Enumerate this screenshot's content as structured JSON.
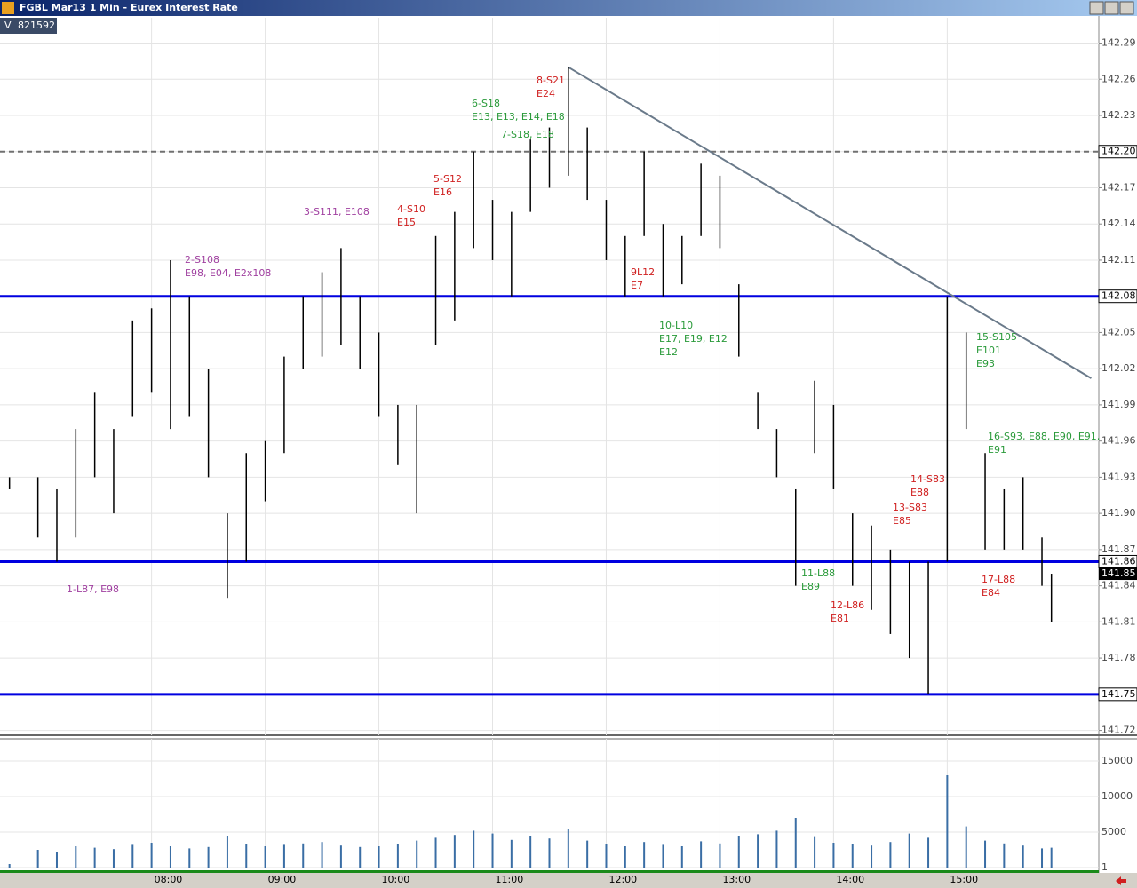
{
  "chart_data": {
    "type": "ohlc",
    "title": "FGBL Mar13 1 Min - Eurex Interest Rate",
    "volume_total_label": "V",
    "volume_total": 821592,
    "x": [
      "06:45",
      "07:00",
      "07:10",
      "07:20",
      "07:30",
      "07:40",
      "07:50",
      "08:00",
      "08:10",
      "08:20",
      "08:30",
      "08:40",
      "08:50",
      "09:00",
      "09:10",
      "09:20",
      "09:30",
      "09:40",
      "09:50",
      "10:00",
      "10:10",
      "10:20",
      "10:30",
      "10:40",
      "10:50",
      "11:00",
      "11:10",
      "11:20",
      "11:30",
      "11:40",
      "11:50",
      "12:00",
      "12:10",
      "12:20",
      "12:30",
      "12:40",
      "12:50",
      "13:00",
      "13:10",
      "13:20",
      "13:30",
      "13:40",
      "13:50",
      "14:00",
      "14:10",
      "14:20",
      "14:30",
      "14:40",
      "14:50",
      "15:00",
      "15:10",
      "15:20",
      "15:30",
      "15:40",
      "15:50",
      "15:55"
    ],
    "high": [
      141.93,
      141.93,
      141.92,
      141.97,
      142.0,
      141.97,
      142.06,
      142.07,
      142.11,
      142.08,
      142.02,
      141.9,
      141.95,
      141.96,
      142.03,
      142.08,
      142.1,
      142.12,
      142.08,
      142.05,
      141.99,
      141.99,
      142.13,
      142.15,
      142.2,
      142.16,
      142.15,
      142.21,
      142.22,
      142.27,
      142.22,
      142.16,
      142.13,
      142.2,
      142.14,
      142.13,
      142.19,
      142.18,
      142.09,
      142.0,
      141.97,
      141.92,
      142.01,
      141.99,
      141.9,
      141.89,
      141.87,
      141.86,
      141.86,
      142.08,
      142.05,
      141.95,
      141.92,
      141.93,
      141.88,
      141.85
    ],
    "low": [
      141.92,
      141.88,
      141.86,
      141.88,
      141.93,
      141.9,
      141.98,
      142.0,
      141.97,
      141.98,
      141.93,
      141.83,
      141.86,
      141.91,
      141.95,
      142.02,
      142.03,
      142.04,
      142.02,
      141.98,
      141.94,
      141.9,
      142.04,
      142.06,
      142.12,
      142.11,
      142.08,
      142.15,
      142.17,
      142.18,
      142.16,
      142.11,
      142.08,
      142.13,
      142.08,
      142.09,
      142.13,
      142.12,
      142.03,
      141.97,
      141.93,
      141.84,
      141.95,
      141.92,
      141.84,
      141.82,
      141.8,
      141.78,
      141.75,
      141.86,
      141.97,
      141.87,
      141.87,
      141.87,
      141.84,
      141.81
    ],
    "volume": [
      500,
      2500,
      2200,
      3000,
      2800,
      2600,
      3200,
      3500,
      3000,
      2700,
      2900,
      4500,
      3300,
      3000,
      3200,
      3400,
      3600,
      3100,
      2900,
      3000,
      3300,
      3800,
      4200,
      4600,
      5200,
      4800,
      3900,
      4400,
      4100,
      5500,
      3800,
      3300,
      3000,
      3600,
      3200,
      3000,
      3700,
      3400,
      4400,
      4700,
      5200,
      7000,
      4300,
      3500,
      3300,
      3100,
      3600,
      4800,
      4200,
      13000,
      5800,
      3800,
      3400,
      3100,
      2700,
      2800
    ],
    "bar_color": "#000000",
    "volume_color": "#3a6ea5",
    "xlim": [
      "06:40",
      "16:20"
    ],
    "xticks": [
      "08:00",
      "09:00",
      "10:00",
      "11:00",
      "12:00",
      "13:00",
      "14:00",
      "15:00"
    ],
    "ylim": [
      141.716,
      142.311
    ],
    "yticks": [
      142.29,
      142.26,
      142.23,
      {
        "value": 142.2,
        "label": "142.20"
      },
      142.17,
      142.14,
      142.11,
      142.08,
      142.05,
      142.02,
      141.99,
      141.96,
      141.93,
      {
        "value": 141.9,
        "label": "141.90"
      },
      141.87,
      141.84,
      141.81,
      141.78,
      141.75,
      141.72
    ],
    "volume_ylim": [
      0,
      18125
    ],
    "volume_yticks": [
      15000,
      10000,
      5000,
      1
    ],
    "grid": true,
    "levels": [
      {
        "value": 142.2,
        "label": "142.20",
        "color": "#707070",
        "dashed": true
      },
      {
        "value": 142.08,
        "color": "#0000e0",
        "dashed": false
      },
      {
        "value": 141.86,
        "color": "#0000e0",
        "dashed": false
      },
      {
        "value": 141.75,
        "color": "#0000e0",
        "dashed": false
      }
    ],
    "last_price": 141.85,
    "trendline": {
      "x": [
        "11:40",
        "16:16"
      ],
      "y": [
        142.27,
        142.012
      ],
      "color": "#6a7a8a"
    },
    "annotations": [
      {
        "lines": [
          "1-L87, E98"
        ],
        "color": "#a040a0"
      },
      {
        "lines": [
          "2-S108",
          "E98, E04, E2x108"
        ],
        "color": "#a040a0"
      },
      {
        "lines": [
          "3-S111, E108"
        ],
        "color": "#a040a0"
      },
      {
        "lines": [
          "4-S10",
          "E15"
        ],
        "color": "#d02020"
      },
      {
        "lines": [
          "5-S12",
          "E16"
        ],
        "color": "#d02020"
      },
      {
        "lines": [
          "6-S18",
          "E13, E13, E14, E18"
        ],
        "color": "#2a9a3a"
      },
      {
        "lines": [
          "7-S18, E18"
        ],
        "color": "#2a9a3a"
      },
      {
        "lines": [
          "8-S21",
          "E24"
        ],
        "color": "#d02020"
      },
      {
        "lines": [
          "9L12",
          "E7"
        ],
        "color": "#d02020"
      },
      {
        "lines": [
          "10-L10",
          "E17, E19, E12",
          "E12"
        ],
        "color": "#2a9a3a"
      },
      {
        "lines": [
          "11-L88",
          "E89"
        ],
        "color": "#2a9a3a"
      },
      {
        "lines": [
          "12-L86",
          "E81"
        ],
        "color": "#d02020"
      },
      {
        "lines": [
          "13-S83",
          "E85"
        ],
        "color": "#d02020"
      },
      {
        "lines": [
          "14-S83",
          "E88"
        ],
        "color": "#d02020"
      },
      {
        "lines": [
          "15-S105",
          "E101",
          "E93"
        ],
        "color": "#2a9a3a"
      },
      {
        "lines": [
          "16-S93, E88, E90, E91,",
          "E91"
        ],
        "color": "#2a9a3a"
      },
      {
        "lines": [
          "17-L88",
          "E84"
        ],
        "color": "#d02020"
      }
    ]
  }
}
